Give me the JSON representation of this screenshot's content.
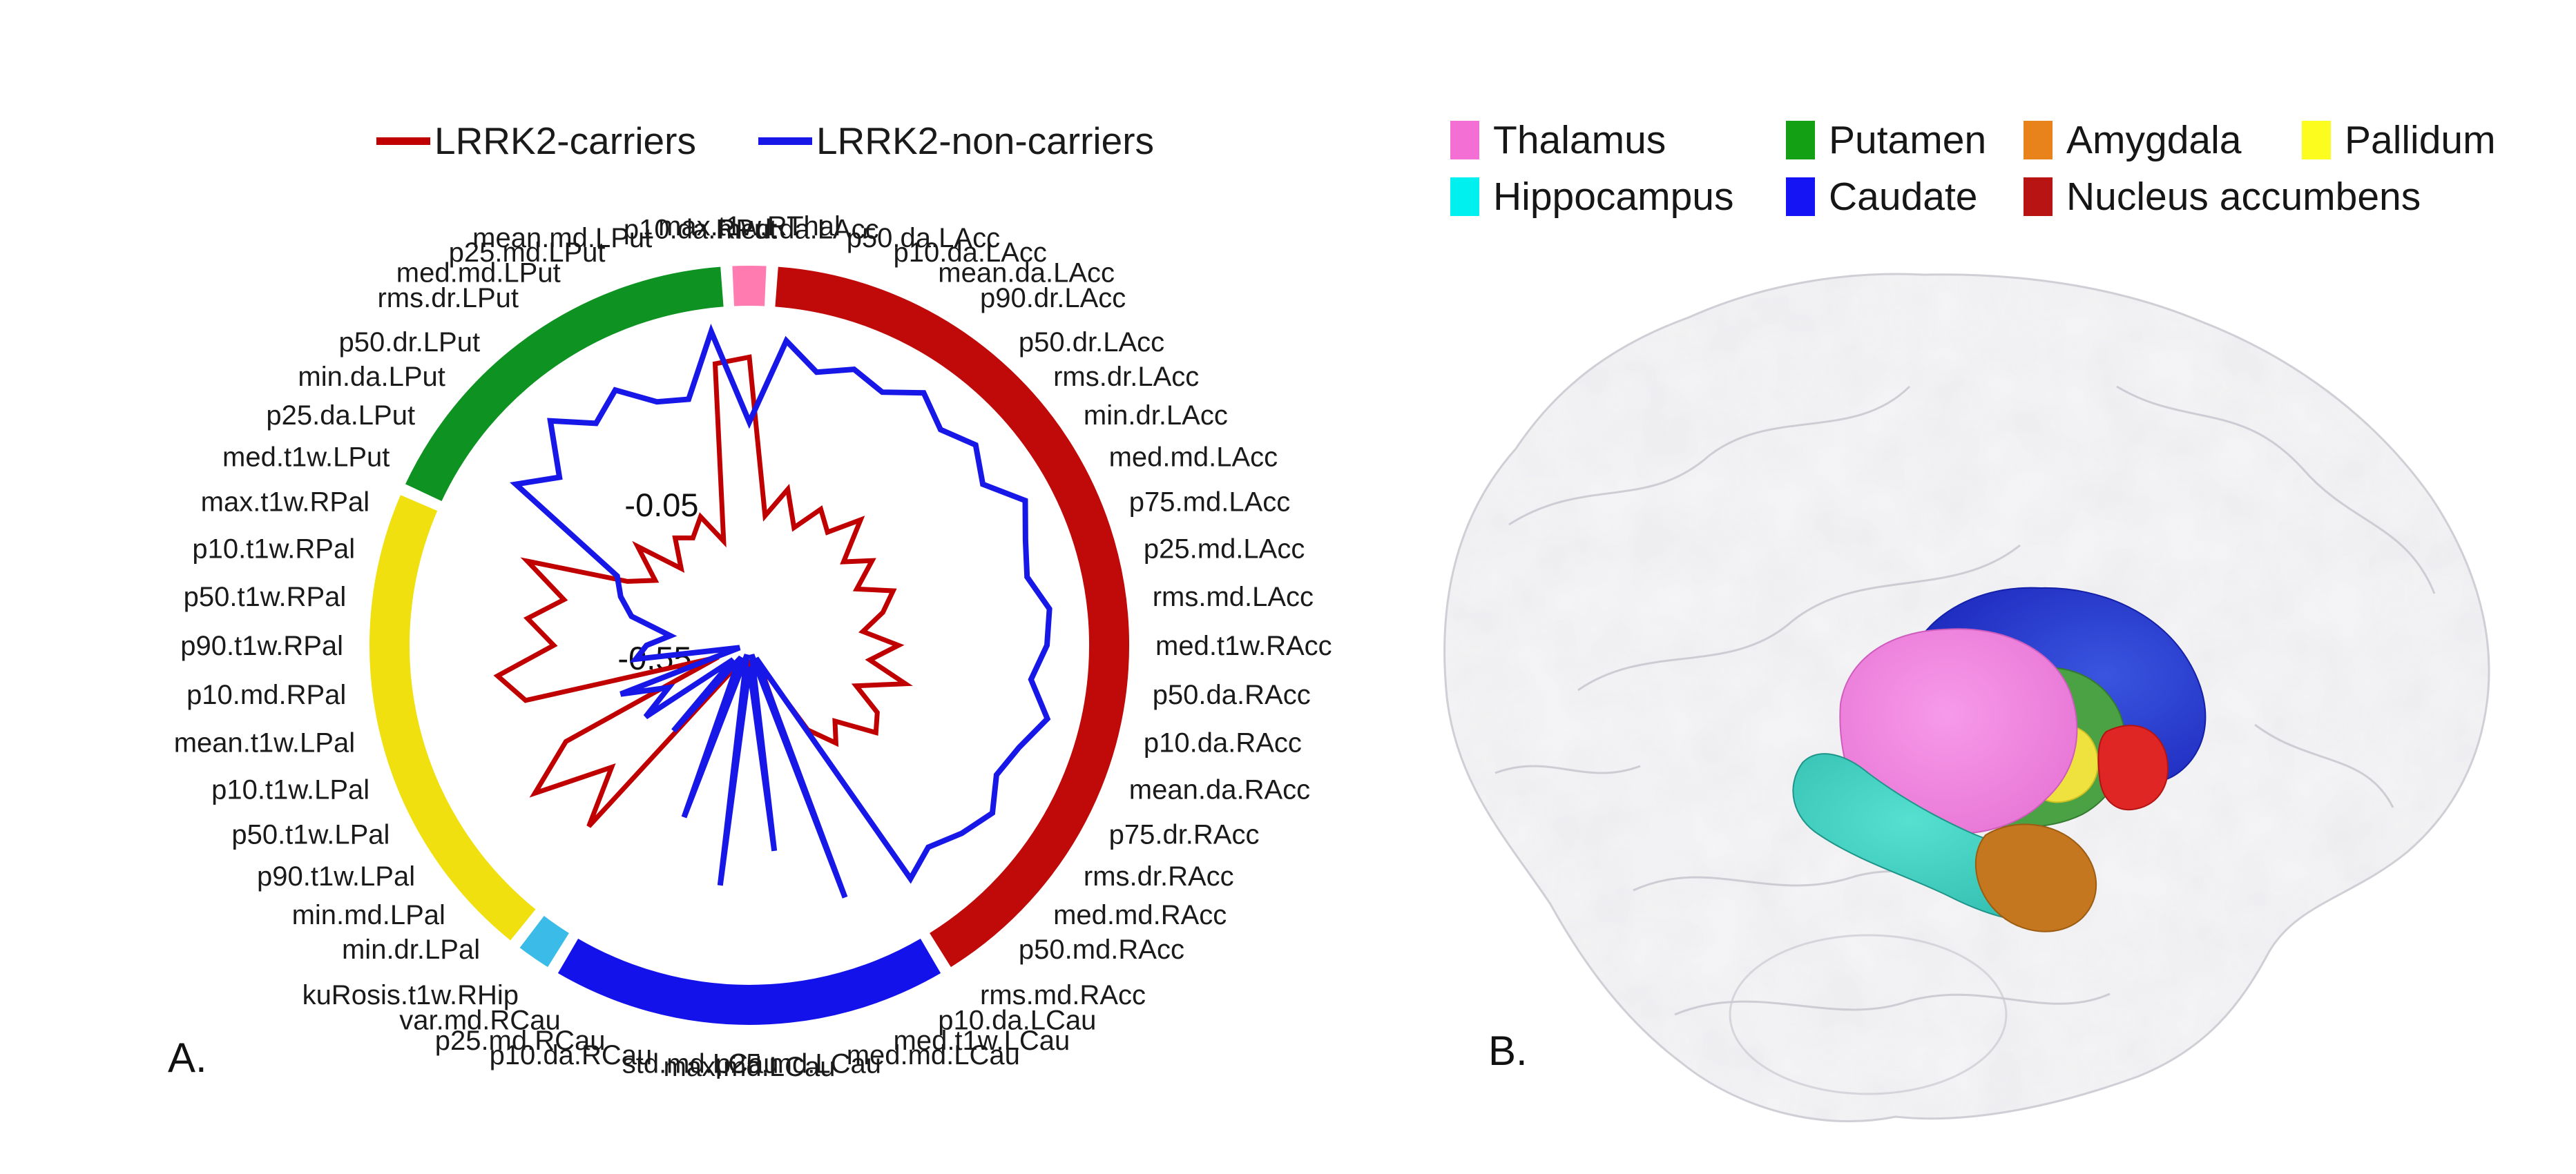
{
  "panel_a": {
    "label": "A."
  },
  "panel_b": {
    "label": "B.",
    "legend_rows": [
      [
        {
          "label": "Thalamus",
          "color": "#f36fd3"
        },
        {
          "label": "Putamen",
          "color": "#14a014"
        },
        {
          "label": "Amygdala",
          "color": "#e8821a"
        },
        {
          "label": "Pallidum",
          "color": "#fcfc1e"
        }
      ],
      [
        {
          "label": "Hippocampus",
          "color": "#00f0f0"
        },
        {
          "label": "Caudate",
          "color": "#1414f5"
        },
        {
          "label": "Nucleus accumbens",
          "color": "#b81414"
        }
      ]
    ]
  },
  "chart_data": {
    "type": "radar",
    "title": "",
    "legend_position": "top",
    "grid": false,
    "radial_axis": {
      "tick_labels": [
        "-0.05",
        "-0.55"
      ],
      "tick_values": [
        -0.05,
        -0.55
      ],
      "note": "only two radial ticks are labeled; values increase outward"
    },
    "categories": [
      "max.t1w.RThal",
      "med.da.LAcc",
      "p50.da.LAcc",
      "p10.da.LAcc",
      "mean.da.LAcc",
      "p90.dr.LAcc",
      "p50.dr.LAcc",
      "rms.dr.LAcc",
      "min.dr.LAcc",
      "med.md.LAcc",
      "p75.md.LAcc",
      "p25.md.LAcc",
      "rms.md.LAcc",
      "med.t1w.RAcc",
      "p50.da.RAcc",
      "p10.da.RAcc",
      "mean.da.RAcc",
      "p75.dr.RAcc",
      "rms.dr.RAcc",
      "med.md.RAcc",
      "p50.md.RAcc",
      "rms.md.RAcc",
      "p10.da.LCau",
      "med.t1w.LCau",
      "med.md.LCau",
      "p25.md.LCau",
      "max.md.LCau",
      "std.md.LCau",
      "p10.da.RCau",
      "p25.md.RCau",
      "var.md.RCau",
      "kuRosis.t1w.RHip",
      "min.dr.LPal",
      "min.md.LPal",
      "p90.t1w.LPal",
      "p50.t1w.LPal",
      "p10.t1w.LPal",
      "mean.t1w.LPal",
      "p10.md.RPal",
      "p90.t1w.RPal",
      "p50.t1w.RPal",
      "p10.t1w.RPal",
      "max.t1w.RPal",
      "med.t1w.LPut",
      "p25.da.LPut",
      "min.da.LPut",
      "p50.dr.LPut",
      "rms.dr.LPut",
      "med.md.LPut",
      "p25.md.LPut",
      "mean.md.LPut",
      "p10.da.RPut"
    ],
    "groups": [
      {
        "name": "thalamus",
        "label": "Thalamus",
        "color": "#ff7bb0",
        "start": 0,
        "end": 0
      },
      {
        "name": "nucleus-accumbens",
        "label": "Nucleus accumbens",
        "color": "#c00a0a",
        "start": 1,
        "end": 21
      },
      {
        "name": "caudate",
        "label": "Caudate",
        "color": "#1412ea",
        "start": 22,
        "end": 30
      },
      {
        "name": "hippocampus",
        "label": "Hippocampus",
        "color": "#3bbce8",
        "start": 31,
        "end": 31
      },
      {
        "name": "pallidum",
        "label": "Pallidum",
        "color": "#f0e010",
        "start": 32,
        "end": 42
      },
      {
        "name": "putamen",
        "label": "Putamen",
        "color": "#0e9322",
        "start": 43,
        "end": 51
      }
    ],
    "series": [
      {
        "name": "LRRK2-carriers",
        "color": "#c00000",
        "values": [
          0.3,
          -0.38,
          -0.25,
          -0.4,
          -0.28,
          -0.35,
          -0.22,
          -0.4,
          -0.3,
          -0.42,
          -0.28,
          -0.35,
          -0.45,
          -0.3,
          -0.42,
          -0.25,
          -0.45,
          -0.32,
          -0.28,
          -0.45,
          -0.38,
          -0.5,
          -0.85,
          -0.25,
          -0.92,
          -0.35,
          -0.88,
          -0.2,
          -0.9,
          -0.3,
          -0.85,
          -0.8,
          0.1,
          -0.15,
          0.18,
          -0.05,
          -0.8,
          0.05,
          0.15,
          -0.1,
          0.02,
          -0.12,
          0.08,
          -0.35,
          -0.45,
          -0.3,
          -0.5,
          -0.38,
          -0.42,
          -0.35,
          -0.48,
          0.28
        ]
      },
      {
        "name": "LRRK2-non-carriers",
        "color": "#1717e8",
        "values": [
          0.02,
          0.38,
          0.27,
          0.33,
          0.29,
          0.38,
          0.3,
          0.36,
          0.28,
          0.4,
          0.33,
          0.29,
          0.36,
          0.34,
          0.28,
          0.38,
          0.3,
          0.26,
          0.33,
          0.28,
          0.22,
          0.28,
          -0.88,
          0.22,
          -0.92,
          -0.05,
          -0.85,
          0.1,
          -0.93,
          -0.15,
          -0.8,
          -0.88,
          -0.45,
          -0.85,
          -0.4,
          -0.55,
          -0.35,
          -0.9,
          -0.45,
          -0.5,
          -0.6,
          -0.42,
          -0.35,
          -0.3,
          0.28,
          0.15,
          0.35,
          0.22,
          0.3,
          0.18,
          0.15,
          0.42
        ]
      }
    ],
    "values_note": "series values estimated from figure geometry; only the -0.05 and -0.55 radial ticks are labeled in the figure"
  }
}
